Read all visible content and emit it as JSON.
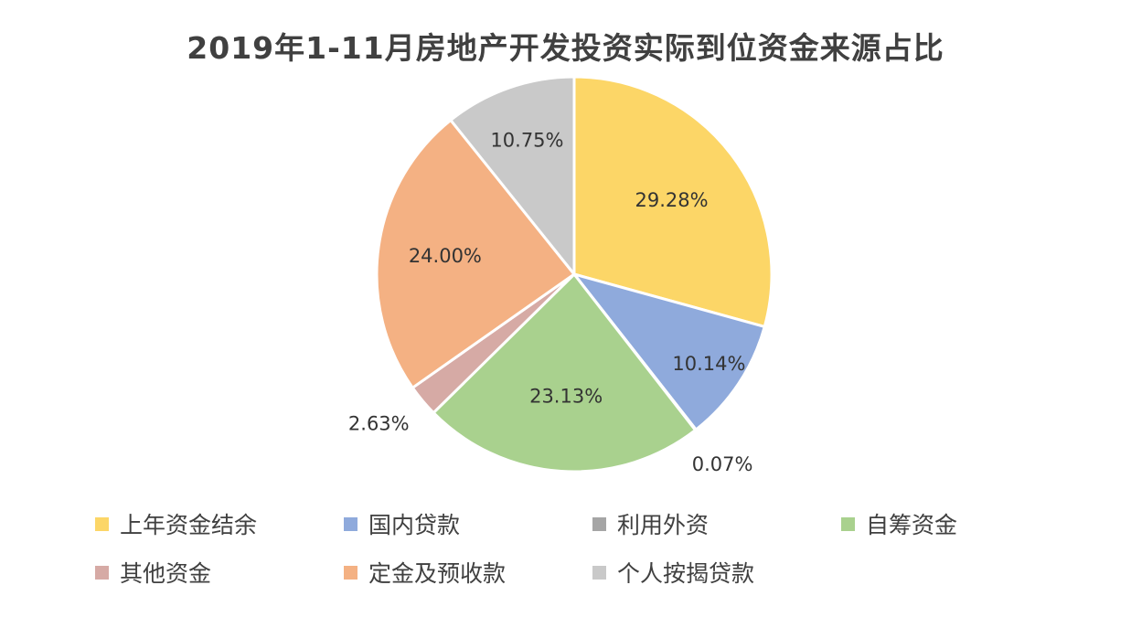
{
  "chart_data": {
    "type": "pie",
    "title": "2019年1-11月房地产开发投资实际到位资金来源占比",
    "slices": [
      {
        "name": "上年资金结余",
        "value": 29.28,
        "label": "29.28%",
        "color": "#FCD667"
      },
      {
        "name": "国内贷款",
        "value": 10.14,
        "label": "10.14%",
        "color": "#8FAADC"
      },
      {
        "name": "利用外资",
        "value": 0.07,
        "label": "0.07%",
        "color": "#A5A5A5"
      },
      {
        "name": "自筹资金",
        "value": 23.13,
        "label": "23.13%",
        "color": "#A9D18E"
      },
      {
        "name": "其他资金",
        "value": 2.63,
        "label": "2.63%",
        "color": "#D6AAA5"
      },
      {
        "name": "定金及预收款",
        "value": 24.0,
        "label": "24.00%",
        "color": "#F4B183"
      },
      {
        "name": "个人按揭贷款",
        "value": 10.75,
        "label": "10.75%",
        "color": "#C9C9C9"
      }
    ],
    "legend_position": "bottom",
    "start_angle": "12 o'clock",
    "direction": "clockwise"
  }
}
